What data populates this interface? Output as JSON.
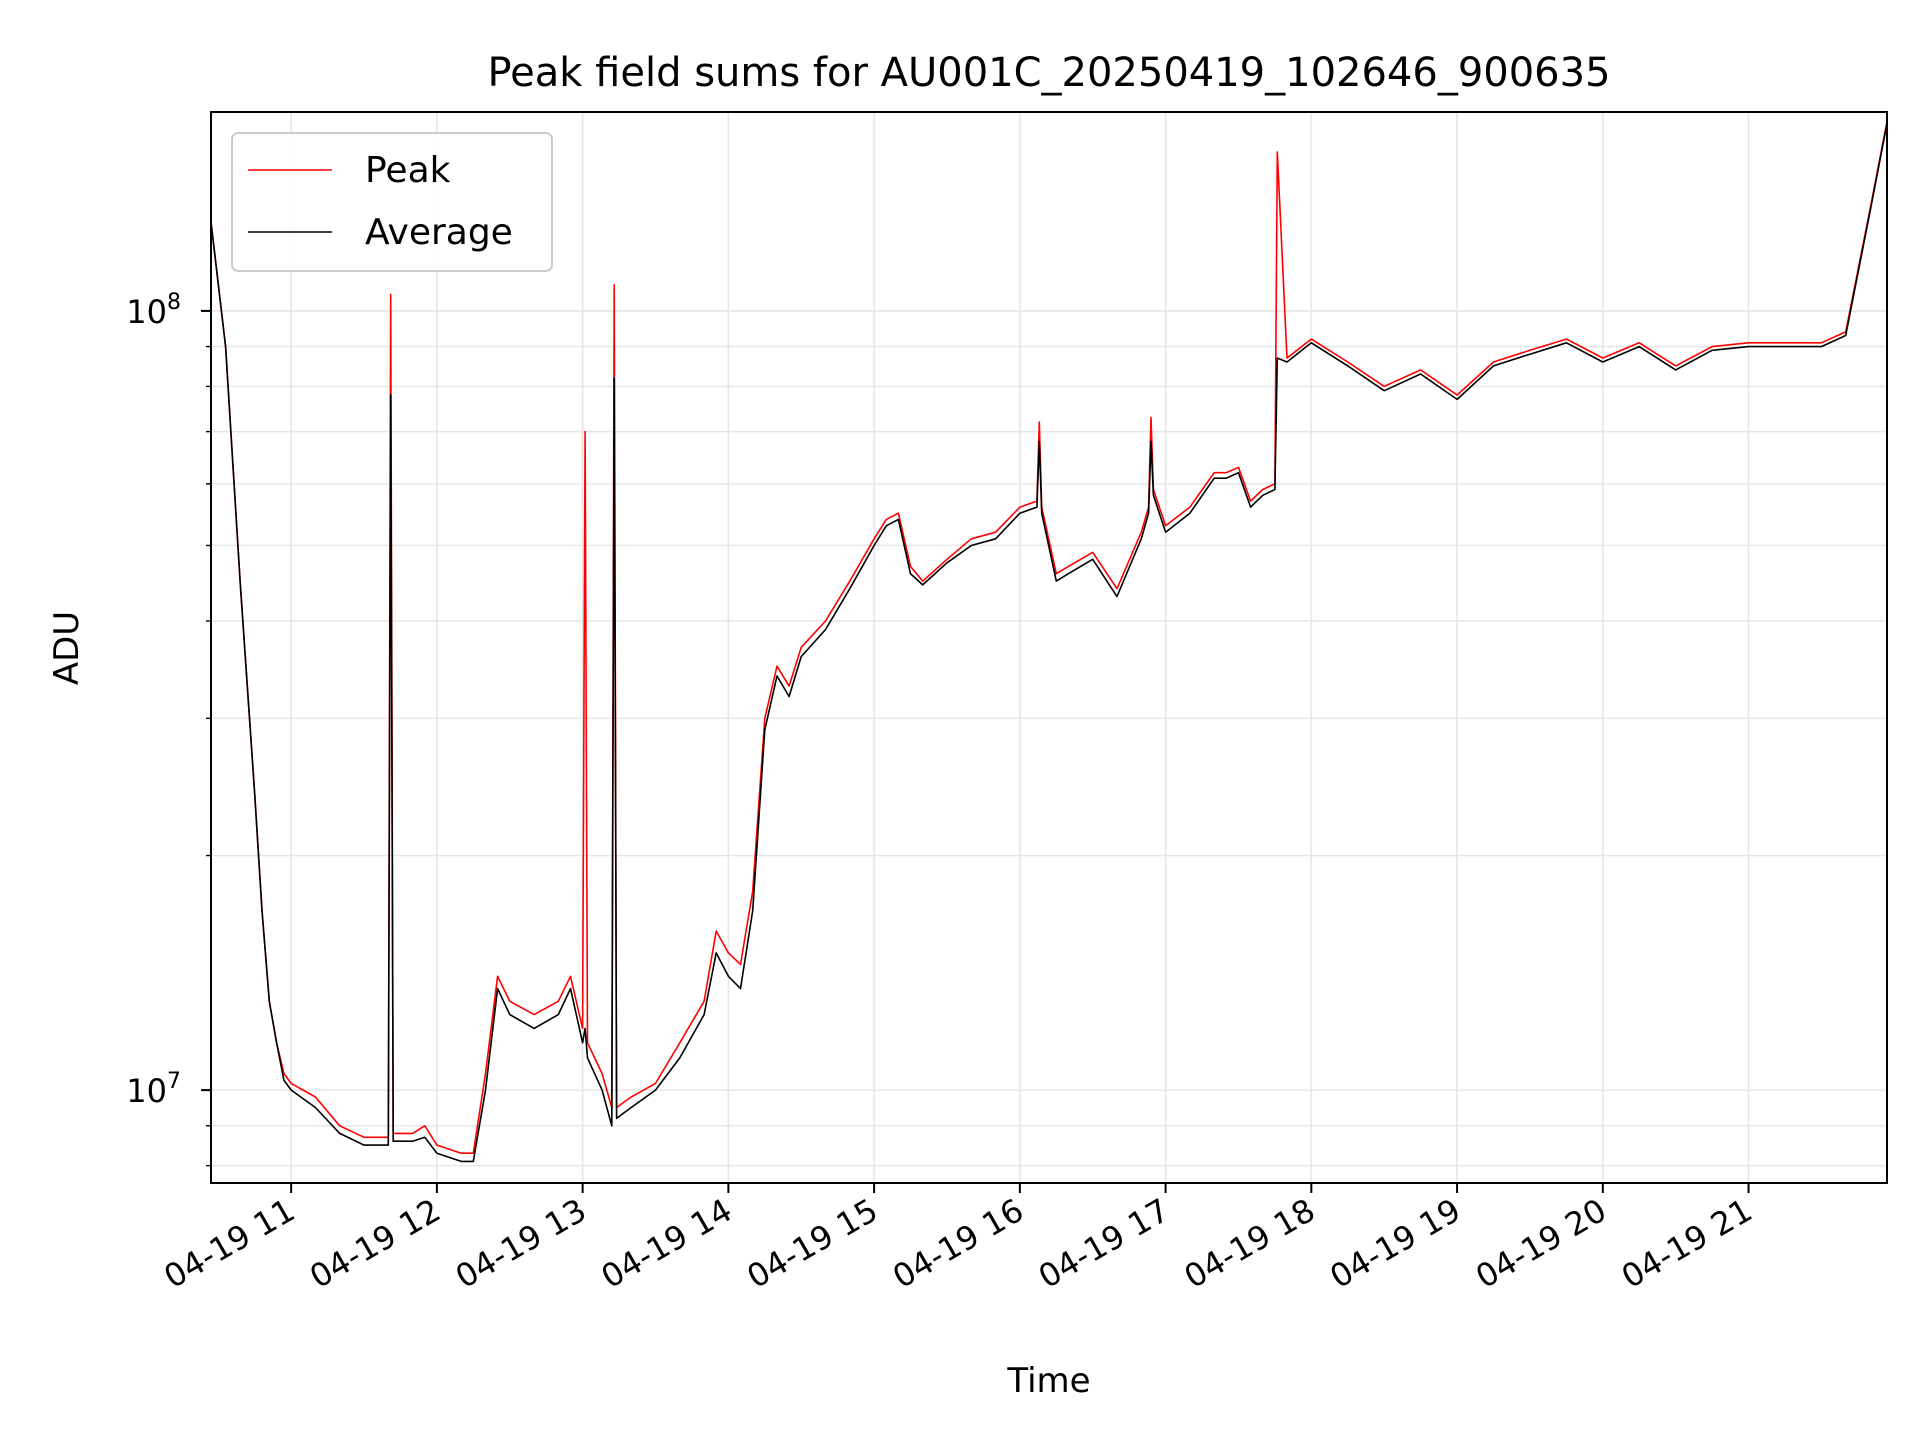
{
  "chart_data": {
    "type": "line",
    "title": "Peak field sums for AU001C_20250419_102646_900635",
    "xlabel": "Time",
    "ylabel": "ADU",
    "yscale": "log",
    "ylim": [
      7600000,
      180000000
    ],
    "xlim": [
      "04-19 10:27",
      "04-19 21:57"
    ],
    "grid": true,
    "legend_position": "top-left",
    "x_ticks": [
      "04-19 11",
      "04-19 12",
      "04-19 13",
      "04-19 14",
      "04-19 15",
      "04-19 16",
      "04-19 17",
      "04-19 18",
      "04-19 19",
      "04-19 20",
      "04-19 21"
    ],
    "y_ticks": [
      {
        "value": 10000000,
        "base": "10",
        "exp": "7"
      },
      {
        "value": 100000000,
        "base": "10",
        "exp": "8"
      }
    ],
    "x": [
      "04-19 10:27",
      "04-19 10:33",
      "04-19 10:39",
      "04-19 10:45",
      "04-19 10:48",
      "04-19 10:51",
      "04-19 10:54",
      "04-19 10:57",
      "04-19 11:00",
      "04-19 11:10",
      "04-19 11:20",
      "04-19 11:30",
      "04-19 11:40",
      "04-19 11:41",
      "04-19 11:42",
      "04-19 11:50",
      "04-19 11:55",
      "04-19 12:00",
      "04-19 12:10",
      "04-19 12:15",
      "04-19 12:20",
      "04-19 12:25",
      "04-19 12:30",
      "04-19 12:40",
      "04-19 12:50",
      "04-19 12:55",
      "04-19 13:00",
      "04-19 13:01",
      "04-19 13:02",
      "04-19 13:08",
      "04-19 13:12",
      "04-19 13:13",
      "04-19 13:14",
      "04-19 13:20",
      "04-19 13:30",
      "04-19 13:40",
      "04-19 13:50",
      "04-19 13:55",
      "04-19 14:00",
      "04-19 14:05",
      "04-19 14:10",
      "04-19 14:15",
      "04-19 14:20",
      "04-19 14:25",
      "04-19 14:30",
      "04-19 14:40",
      "04-19 14:50",
      "04-19 15:00",
      "04-19 15:05",
      "04-19 15:10",
      "04-19 15:15",
      "04-19 15:20",
      "04-19 15:30",
      "04-19 15:40",
      "04-19 15:50",
      "04-19 16:00",
      "04-19 16:07",
      "04-19 16:08",
      "04-19 16:09",
      "04-19 16:15",
      "04-19 16:20",
      "04-19 16:30",
      "04-19 16:40",
      "04-19 16:50",
      "04-19 16:53",
      "04-19 16:54",
      "04-19 16:55",
      "04-19 17:00",
      "04-19 17:10",
      "04-19 17:20",
      "04-19 17:25",
      "04-19 17:30",
      "04-19 17:35",
      "04-19 17:40",
      "04-19 17:45",
      "04-19 17:46",
      "04-19 17:50",
      "04-19 18:00",
      "04-19 18:15",
      "04-19 18:30",
      "04-19 18:45",
      "04-19 19:00",
      "04-19 19:15",
      "04-19 19:30",
      "04-19 19:45",
      "04-19 20:00",
      "04-19 20:15",
      "04-19 20:30",
      "04-19 20:45",
      "04-19 21:00",
      "04-19 21:15",
      "04-19 21:30",
      "04-19 21:40",
      "04-19 21:50",
      "04-19 21:57"
    ],
    "series": [
      {
        "name": "Peak",
        "color": "#ff0000",
        "values": [
          130000000,
          90000000,
          45000000,
          24000000,
          17000000,
          13000000,
          11500000,
          10500000,
          10200000,
          9800000,
          9000000,
          8700000,
          8700000,
          105000000,
          8800000,
          8800000,
          9000000,
          8500000,
          8300000,
          8300000,
          10500000,
          14000000,
          13000000,
          12500000,
          13000000,
          14000000,
          12000000,
          70000000,
          11500000,
          10500000,
          9500000,
          108000000,
          9500000,
          9800000,
          10200000,
          11500000,
          13000000,
          16000000,
          15000000,
          14500000,
          18000000,
          30000000,
          35000000,
          33000000,
          37000000,
          40000000,
          45000000,
          51000000,
          54000000,
          55000000,
          47000000,
          45000000,
          48000000,
          51000000,
          52000000,
          56000000,
          57000000,
          72000000,
          56000000,
          46000000,
          47000000,
          49000000,
          44000000,
          52000000,
          56000000,
          73000000,
          59000000,
          53000000,
          56000000,
          62000000,
          62000000,
          63000000,
          57000000,
          59000000,
          60000000,
          160000000,
          87000000,
          92000000,
          86000000,
          80000000,
          84000000,
          78000000,
          86000000,
          89000000,
          92000000,
          87000000,
          91000000,
          85000000,
          90000000,
          91000000,
          91000000,
          91000000,
          94000000,
          135000000,
          175000000
        ]
      },
      {
        "name": "Average",
        "color": "#000000",
        "values": [
          130000000,
          90000000,
          45000000,
          24000000,
          17000000,
          13000000,
          11500000,
          10300000,
          10000000,
          9500000,
          8800000,
          8500000,
          8500000,
          78000000,
          8600000,
          8600000,
          8700000,
          8300000,
          8100000,
          8100000,
          10000000,
          13500000,
          12500000,
          12000000,
          12500000,
          13500000,
          11500000,
          12000000,
          11000000,
          10000000,
          9000000,
          82000000,
          9200000,
          9500000,
          10000000,
          11000000,
          12500000,
          15000000,
          14000000,
          13500000,
          17000000,
          29000000,
          34000000,
          32000000,
          36000000,
          39000000,
          44000000,
          50000000,
          53000000,
          54000000,
          46000000,
          44500000,
          47500000,
          50000000,
          51000000,
          55000000,
          56000000,
          68000000,
          55000000,
          45000000,
          46000000,
          48000000,
          43000000,
          51000000,
          55000000,
          68000000,
          58000000,
          52000000,
          55000000,
          61000000,
          61000000,
          62000000,
          56000000,
          58000000,
          59000000,
          87000000,
          86000000,
          91000000,
          85000000,
          79000000,
          83000000,
          77000000,
          85000000,
          88000000,
          91000000,
          86000000,
          90000000,
          84000000,
          89000000,
          90000000,
          90000000,
          90000000,
          93000000,
          134000000,
          174000000
        ]
      }
    ]
  }
}
